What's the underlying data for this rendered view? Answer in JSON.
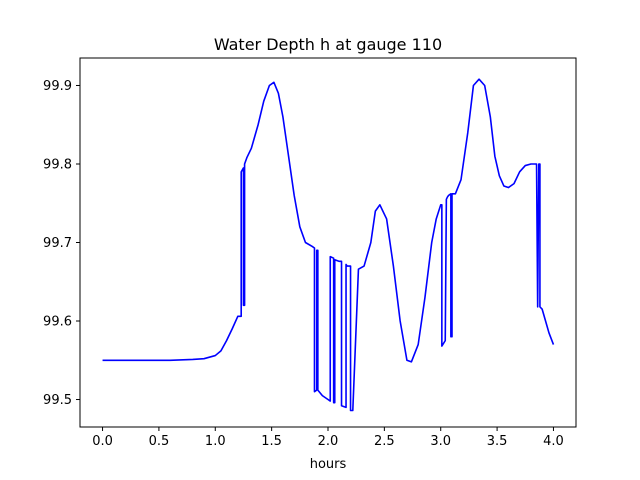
{
  "chart_data": {
    "type": "line",
    "title": "Water Depth h at gauge 110",
    "xlabel": "hours",
    "ylabel": "",
    "xlim": [
      -0.2,
      4.2
    ],
    "ylim": [
      99.465,
      99.935
    ],
    "xticks": [
      0.0,
      0.5,
      1.0,
      1.5,
      2.0,
      2.5,
      3.0,
      3.5,
      4.0
    ],
    "xtick_labels": [
      "0.0",
      "0.5",
      "1.0",
      "1.5",
      "2.0",
      "2.5",
      "3.0",
      "3.5",
      "4.0"
    ],
    "yticks": [
      99.5,
      99.6,
      99.7,
      99.8,
      99.9
    ],
    "ytick_labels": [
      "99.5",
      "99.6",
      "99.7",
      "99.8",
      "99.9"
    ],
    "grid": false,
    "legend": "none",
    "colors": {
      "line": "#0000ff",
      "frame": "#000000",
      "background": "#ffffff"
    },
    "series": [
      {
        "x": [
          0.0,
          0.2,
          0.4,
          0.6,
          0.8,
          0.9,
          1.0,
          1.05,
          1.1,
          1.15,
          1.2,
          1.23,
          1.23,
          1.25,
          1.25,
          1.26,
          1.26,
          1.28,
          1.32,
          1.38,
          1.43,
          1.48,
          1.52,
          1.56,
          1.6,
          1.65,
          1.7,
          1.75,
          1.8,
          1.86,
          1.88,
          1.88,
          1.9,
          1.9,
          1.91,
          1.91,
          1.95,
          2.0,
          2.02,
          2.02,
          2.05,
          2.05,
          2.06,
          2.06,
          2.1,
          2.12,
          2.12,
          2.16,
          2.16,
          2.17,
          2.2,
          2.2,
          2.22,
          2.27,
          2.32,
          2.38,
          2.42,
          2.46,
          2.52,
          2.58,
          2.64,
          2.7,
          2.74,
          2.8,
          2.86,
          2.92,
          2.96,
          3.0,
          3.01,
          3.01,
          3.04,
          3.05,
          3.06,
          3.07,
          3.09,
          3.09,
          3.1,
          3.1,
          3.13,
          3.18,
          3.24,
          3.29,
          3.34,
          3.39,
          3.44,
          3.48,
          3.52,
          3.56,
          3.6,
          3.65,
          3.7,
          3.75,
          3.8,
          3.85,
          3.86,
          3.86,
          3.87,
          3.88,
          3.88,
          3.9,
          3.93,
          3.96,
          4.0
        ],
        "y": [
          99.55,
          99.55,
          99.55,
          99.55,
          99.551,
          99.552,
          99.556,
          99.562,
          99.575,
          99.59,
          99.606,
          99.606,
          99.79,
          99.795,
          99.62,
          99.62,
          99.8,
          99.808,
          99.82,
          99.85,
          99.88,
          99.9,
          99.904,
          99.89,
          99.86,
          99.81,
          99.76,
          99.72,
          99.7,
          99.695,
          99.693,
          99.51,
          99.512,
          99.69,
          99.69,
          99.512,
          99.505,
          99.5,
          99.498,
          99.682,
          99.68,
          99.496,
          99.496,
          99.678,
          99.676,
          99.676,
          99.492,
          99.49,
          99.672,
          99.67,
          99.67,
          99.486,
          99.486,
          99.666,
          99.67,
          99.7,
          99.74,
          99.748,
          99.73,
          99.67,
          99.6,
          99.55,
          99.548,
          99.57,
          99.63,
          99.7,
          99.73,
          99.748,
          99.748,
          99.568,
          99.575,
          99.755,
          99.758,
          99.76,
          99.762,
          99.58,
          99.58,
          99.762,
          99.762,
          99.78,
          99.84,
          99.9,
          99.908,
          99.9,
          99.86,
          99.81,
          99.785,
          99.772,
          99.77,
          99.775,
          99.79,
          99.798,
          99.8,
          99.8,
          99.618,
          99.618,
          99.8,
          99.8,
          99.618,
          99.615,
          99.6,
          99.585,
          99.57
        ]
      }
    ]
  }
}
